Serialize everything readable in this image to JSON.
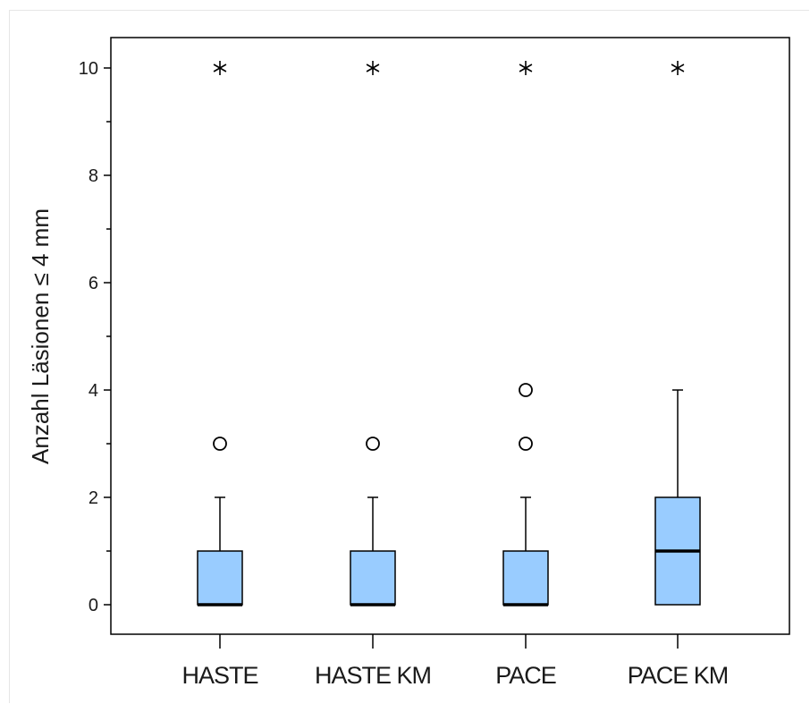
{
  "chart_data": {
    "type": "boxplot",
    "title": "",
    "xlabel": "",
    "ylabel": "Anzahl Läsionen ≤ 4 mm",
    "ylim": [
      -0.55,
      10.55
    ],
    "y_ticks": [
      "0",
      "2",
      "4",
      "6",
      "8",
      "10"
    ],
    "y_minor_ticks": [
      1,
      3,
      5,
      7,
      9
    ],
    "grid": false,
    "box_color": "#99ccff",
    "categories": [
      "HASTE",
      "HASTE KM",
      "PACE",
      "PACE KM"
    ],
    "boxes": [
      {
        "category": "HASTE",
        "min": 0,
        "q1": 0,
        "median": 0,
        "q3": 1,
        "max": 2,
        "outliers": [
          3
        ],
        "extremes": [
          10
        ]
      },
      {
        "category": "HASTE KM",
        "min": 0,
        "q1": 0,
        "median": 0,
        "q3": 1,
        "max": 2,
        "outliers": [
          3
        ],
        "extremes": [
          10
        ]
      },
      {
        "category": "PACE",
        "min": 0,
        "q1": 0,
        "median": 0,
        "q3": 1,
        "max": 2,
        "outliers": [
          3,
          4
        ],
        "extremes": [
          10
        ]
      },
      {
        "category": "PACE KM",
        "min": 0,
        "q1": 0,
        "median": 1,
        "q3": 2,
        "max": 4,
        "outliers": [],
        "extremes": [
          10
        ]
      }
    ]
  }
}
